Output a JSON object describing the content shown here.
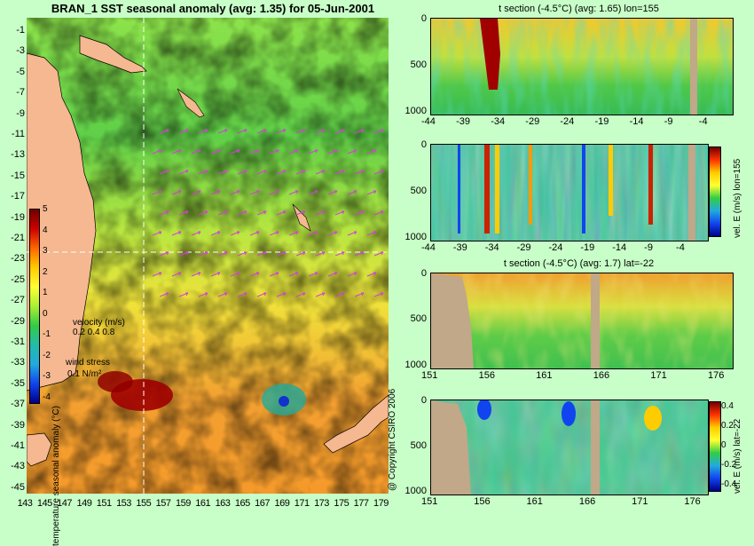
{
  "title": "BRAN_1 SST seasonal anomaly (avg: 1.35) for 05-Jun-2001",
  "map": {
    "y_labels": [
      "-1",
      "-3",
      "-5",
      "-7",
      "-9",
      "-11",
      "-13",
      "-15",
      "-17",
      "-19",
      "-21",
      "-23",
      "-25",
      "-27",
      "-29",
      "-31",
      "-33",
      "-35",
      "-37",
      "-39",
      "-41",
      "-43",
      "-45"
    ],
    "x_labels": [
      "143",
      "145",
      "147",
      "149",
      "151",
      "153",
      "155",
      "157",
      "159",
      "161",
      "163",
      "165",
      "167",
      "169",
      "171",
      "173",
      "175",
      "177",
      "179"
    ],
    "colorbar": {
      "ticks": [
        "5",
        "4",
        "3",
        "2",
        "1",
        "0",
        "-1",
        "-2",
        "-3",
        "-4"
      ],
      "title": "temperature seasonal anomaly (°C)"
    },
    "legend": {
      "velocity_label": "velocity (m/s)",
      "velocity_scale": "0.2 0.4 0.8",
      "wind_label": "wind stress",
      "wind_scale": "0.1 N/m²"
    },
    "land_color": "#f5b890"
  },
  "copyright": "@ Copyright CSIRO 2006",
  "panels": [
    {
      "title": "t section (-4.5°C) (avg: 1.65) lon=155",
      "x_ticks": [
        "-44",
        "-39",
        "-34",
        "-29",
        "-24",
        "-19",
        "-14",
        "-9",
        "-4"
      ],
      "y_ticks": [
        "0",
        "500",
        "1000"
      ]
    },
    {
      "title": "",
      "x_ticks": [
        "-44",
        "-39",
        "-34",
        "-29",
        "-24",
        "-19",
        "-14",
        "-9",
        "-4"
      ],
      "y_ticks": [
        "0",
        "500",
        "1000"
      ],
      "side_label": "vel. E (m/s) lon=155"
    },
    {
      "title": "t section (-4.5°C) (avg: 1.7) lat=-22",
      "x_ticks": [
        "151",
        "156",
        "161",
        "166",
        "171",
        "176"
      ],
      "y_ticks": [
        "0",
        "500",
        "1000"
      ]
    },
    {
      "title": "",
      "x_ticks": [
        "151",
        "156",
        "161",
        "166",
        "171",
        "176"
      ],
      "y_ticks": [
        "0",
        "500",
        "1000"
      ],
      "side_label": "vel. E (m/s) lat=-22",
      "cb_ticks": [
        "0.4",
        "0.2",
        "0",
        "-0.2",
        "-0.4"
      ]
    }
  ]
}
